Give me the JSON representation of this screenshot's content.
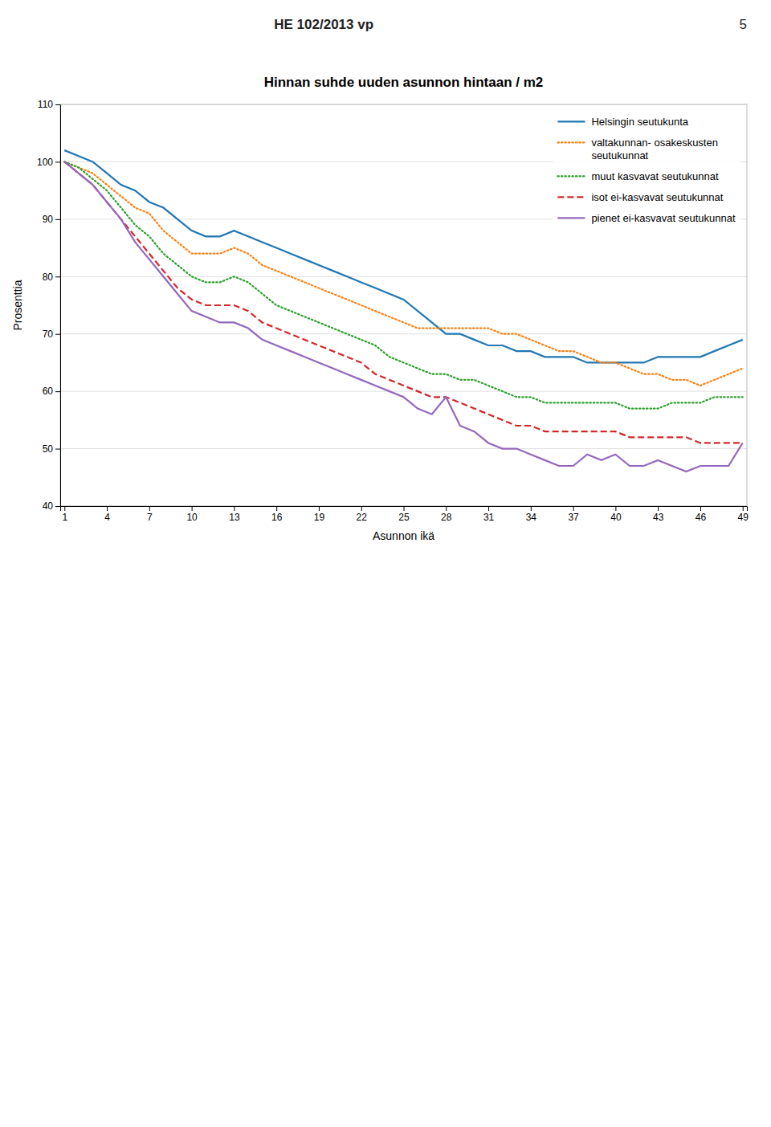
{
  "page_header": "HE 102/2013 vp",
  "page_number": "5",
  "chart_data": {
    "type": "line",
    "title": "Hinnan suhde uuden asunnon hintaan / m2",
    "xlabel": "Asunnon ikä",
    "ylabel": "Prosenttia",
    "xlim": [
      0.7,
      49.3
    ],
    "ylim": [
      40,
      110
    ],
    "xticks": [
      1,
      4,
      7,
      10,
      13,
      16,
      19,
      22,
      25,
      28,
      31,
      34,
      37,
      40,
      43,
      46,
      49
    ],
    "yticks": [
      40,
      50,
      60,
      70,
      80,
      90,
      100,
      110
    ],
    "grid": "y",
    "legend": "upper right",
    "x": [
      1,
      2,
      3,
      4,
      5,
      6,
      7,
      8,
      9,
      10,
      11,
      12,
      13,
      14,
      15,
      16,
      17,
      18,
      19,
      20,
      21,
      22,
      23,
      24,
      25,
      26,
      27,
      28,
      29,
      30,
      31,
      32,
      33,
      34,
      35,
      36,
      37,
      38,
      39,
      40,
      41,
      42,
      43,
      44,
      45,
      46,
      47,
      48,
      49
    ],
    "series": [
      {
        "name": "Helsingin seutukunta",
        "line_style": "solid",
        "values": [
          102,
          101,
          100,
          98,
          96,
          95,
          93,
          92,
          90,
          88,
          87,
          87,
          88,
          87,
          86,
          85,
          84,
          83,
          82,
          81,
          80,
          79,
          78,
          77,
          76,
          74,
          72,
          70,
          70,
          69,
          68,
          68,
          67,
          67,
          66,
          66,
          66,
          65,
          65,
          65,
          65,
          65,
          66,
          66,
          66,
          66,
          67,
          68,
          69
        ]
      },
      {
        "name": "valtakunnan- osakeskusten\nseutukunnat",
        "line_style": "dotted",
        "values": [
          100,
          99,
          98,
          96,
          94,
          92,
          91,
          88,
          86,
          84,
          84,
          84,
          85,
          84,
          82,
          81,
          80,
          79,
          78,
          77,
          76,
          75,
          74,
          73,
          72,
          71,
          71,
          71,
          71,
          71,
          71,
          70,
          70,
          69,
          68,
          67,
          67,
          66,
          65,
          65,
          64,
          63,
          63,
          62,
          62,
          61,
          62,
          63,
          64
        ]
      },
      {
        "name": "muut kasvavat seutukunnat",
        "line_style": "dotted",
        "values": [
          100,
          99,
          97,
          95,
          92,
          89,
          87,
          84,
          82,
          80,
          79,
          79,
          80,
          79,
          77,
          75,
          74,
          73,
          72,
          71,
          70,
          69,
          68,
          66,
          65,
          64,
          63,
          63,
          62,
          62,
          61,
          60,
          59,
          59,
          58,
          58,
          58,
          58,
          58,
          58,
          57,
          57,
          57,
          58,
          58,
          58,
          59,
          59,
          59
        ]
      },
      {
        "name": "isot ei-kasvavat seutukunnat",
        "line_style": "dashed",
        "values": [
          100,
          98,
          96,
          93,
          90,
          87,
          84,
          81,
          78,
          76,
          75,
          75,
          75,
          74,
          72,
          71,
          70,
          69,
          68,
          67,
          66,
          65,
          63,
          62,
          61,
          60,
          59,
          59,
          58,
          57,
          56,
          55,
          54,
          54,
          53,
          53,
          53,
          53,
          53,
          53,
          52,
          52,
          52,
          52,
          52,
          51,
          51,
          51,
          51
        ]
      },
      {
        "name": "pienet ei-kasvavat seutukunnat",
        "line_style": "solid",
        "values": [
          100,
          98,
          96,
          93,
          90,
          86,
          83,
          80,
          77,
          74,
          73,
          72,
          72,
          71,
          69,
          68,
          67,
          66,
          65,
          64,
          63,
          62,
          61,
          60,
          59,
          57,
          56,
          59,
          54,
          53,
          51,
          50,
          50,
          49,
          48,
          47,
          47,
          49,
          48,
          49,
          47,
          47,
          48,
          47,
          46,
          47,
          47,
          47,
          51
        ]
      }
    ]
  }
}
